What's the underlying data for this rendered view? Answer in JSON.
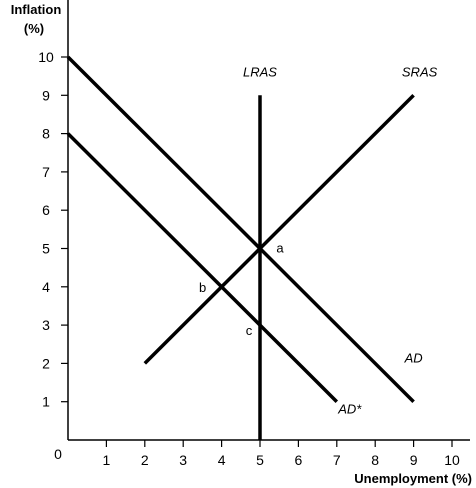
{
  "chart_data": {
    "type": "line",
    "title": "",
    "ylabel_line1": "Inflation",
    "ylabel_line2": "(%)",
    "xlabel": "Unemployment (%)",
    "origin_label": "0",
    "xlim": [
      0,
      10
    ],
    "ylim": [
      0,
      10
    ],
    "x_ticks": [
      1,
      2,
      3,
      4,
      5,
      6,
      7,
      8,
      9,
      10
    ],
    "y_ticks": [
      1,
      2,
      3,
      4,
      5,
      6,
      7,
      8,
      9,
      10
    ],
    "grid": false,
    "series": [
      {
        "name": "AD",
        "points": [
          [
            0,
            10
          ],
          [
            9,
            1
          ]
        ]
      },
      {
        "name": "AD*",
        "points": [
          [
            0,
            8
          ],
          [
            7,
            1
          ]
        ]
      },
      {
        "name": "SRAS",
        "points": [
          [
            2,
            2
          ],
          [
            9,
            9
          ]
        ]
      },
      {
        "name": "LRAS",
        "points": [
          [
            5,
            0
          ],
          [
            5,
            9
          ]
        ]
      }
    ],
    "points": [
      {
        "label": "a",
        "x": 5,
        "y": 5
      },
      {
        "label": "b",
        "x": 4,
        "y": 4
      },
      {
        "label": "c",
        "x": 5,
        "y": 3
      }
    ]
  }
}
